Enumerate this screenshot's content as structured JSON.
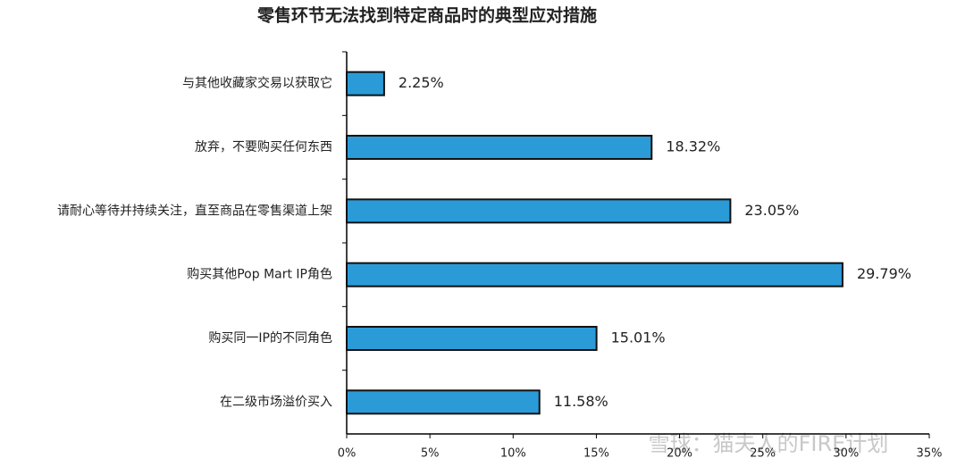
{
  "chart_data": {
    "type": "bar",
    "orientation": "horizontal",
    "title": "零售环节无法找到特定商品时的典型应对措施",
    "categories": [
      "与其他收藏家交易以获取它",
      "放弃，不要购买任何东西",
      "请耐心等待并持续关注，直至商品在零售渠道上架",
      "购买其他Pop Mart IP角色",
      "购买同一IP的不同角色",
      "在二级市场溢价买入"
    ],
    "values": [
      2.25,
      18.32,
      23.05,
      29.79,
      15.01,
      11.58
    ],
    "value_labels": [
      "2.25%",
      "18.32%",
      "23.05%",
      "29.79%",
      "15.01%",
      "11.58%"
    ],
    "color": "#2b9bd8",
    "xlim": [
      0,
      35
    ],
    "xticks": [
      {
        "value": 0,
        "label": "0%"
      },
      {
        "value": 5,
        "label": "5%"
      },
      {
        "value": 10,
        "label": "10%"
      },
      {
        "value": 15,
        "label": "15%"
      },
      {
        "value": 20,
        "label": "20%"
      },
      {
        "value": 25,
        "label": "25%"
      },
      {
        "value": 30,
        "label": "30%"
      },
      {
        "value": 35,
        "label": "35%"
      }
    ],
    "watermark": "雪球：猫夫人的FIRE计划"
  }
}
